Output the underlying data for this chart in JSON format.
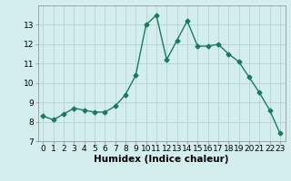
{
  "x": [
    0,
    1,
    2,
    3,
    4,
    5,
    6,
    7,
    8,
    9,
    10,
    11,
    12,
    13,
    14,
    15,
    16,
    17,
    18,
    19,
    20,
    21,
    22,
    23
  ],
  "y": [
    8.3,
    8.1,
    8.4,
    8.7,
    8.6,
    8.5,
    8.5,
    8.8,
    9.4,
    10.4,
    13.0,
    13.5,
    11.2,
    12.2,
    13.2,
    11.9,
    11.9,
    12.0,
    11.5,
    11.1,
    10.3,
    9.5,
    8.6,
    7.4
  ],
  "line_color": "#1a7a5e",
  "bg_color": "#d4eeee",
  "xlabel": "Humidex (Indice chaleur)",
  "xlim": [
    -0.5,
    23.5
  ],
  "ylim": [
    7,
    14
  ],
  "yticks": [
    7,
    8,
    9,
    10,
    11,
    12,
    13
  ],
  "xticks": [
    0,
    1,
    2,
    3,
    4,
    5,
    6,
    7,
    8,
    9,
    10,
    11,
    12,
    13,
    14,
    15,
    16,
    17,
    18,
    19,
    20,
    21,
    22,
    23
  ],
  "grid_color": "#b8d8d8",
  "marker": "D",
  "marker_size": 2.5,
  "line_width": 1.0,
  "xlabel_fontsize": 7.5,
  "tick_fontsize": 6.5
}
